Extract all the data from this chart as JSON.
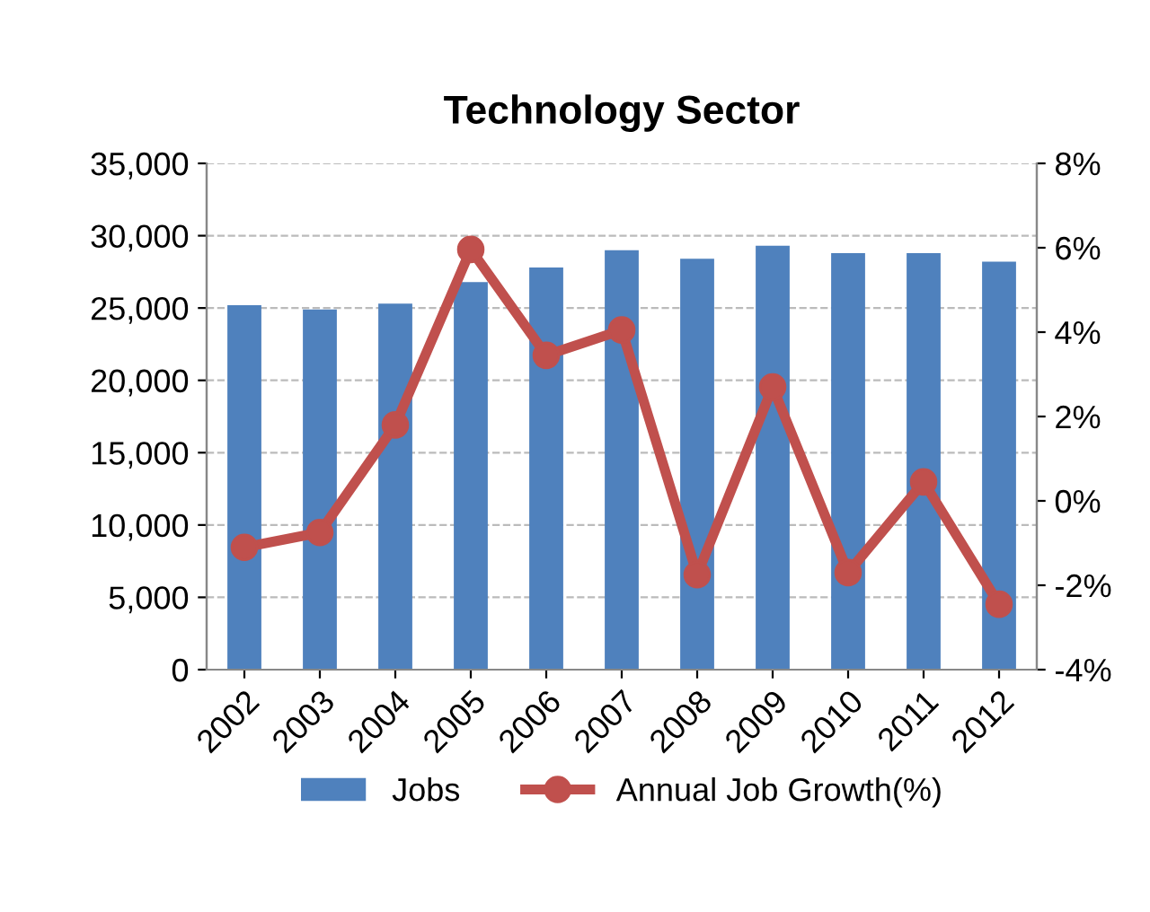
{
  "chart_data": {
    "type": "bar",
    "title": "Technology Sector",
    "categories": [
      "2002",
      "2003",
      "2004",
      "2005",
      "2006",
      "2007",
      "2008",
      "2009",
      "2010",
      "2011",
      "2012"
    ],
    "series": [
      {
        "name": "Jobs",
        "color": "#4f81bd",
        "values": [
          25200,
          24900,
          25300,
          26800,
          27800,
          29000,
          28400,
          29300,
          28800,
          28800,
          28200
        ]
      },
      {
        "name": "Annual Job Growth(%)",
        "type": "line",
        "axis": "y2",
        "color": "#c0504d",
        "marker": "circle",
        "values": [
          -1.1,
          -0.75,
          1.8,
          5.96,
          3.45,
          4.05,
          -1.75,
          2.7,
          -1.7,
          0.45,
          -2.45
        ]
      }
    ],
    "ylim": [
      0,
      35000
    ],
    "yticks": [
      {
        "value": 0,
        "label": "0"
      },
      {
        "value": 5000,
        "label": "5,000"
      },
      {
        "value": 10000,
        "label": "10,000"
      },
      {
        "value": 15000,
        "label": "15,000"
      },
      {
        "value": 20000,
        "label": "20,000"
      },
      {
        "value": 25000,
        "label": "25,000"
      },
      {
        "value": 30000,
        "label": "30,000"
      },
      {
        "value": 35000,
        "label": "35,000"
      }
    ],
    "y2lim": [
      -4,
      8
    ],
    "y2ticks": [
      {
        "value": -4,
        "label": "-4%"
      },
      {
        "value": -2,
        "label": "-2%"
      },
      {
        "value": 0,
        "label": "0%"
      },
      {
        "value": 2,
        "label": "2%"
      },
      {
        "value": 4,
        "label": "4%"
      },
      {
        "value": 6,
        "label": "6%"
      },
      {
        "value": 8,
        "label": "8%"
      }
    ],
    "grid": "y",
    "legend": "bottom"
  }
}
